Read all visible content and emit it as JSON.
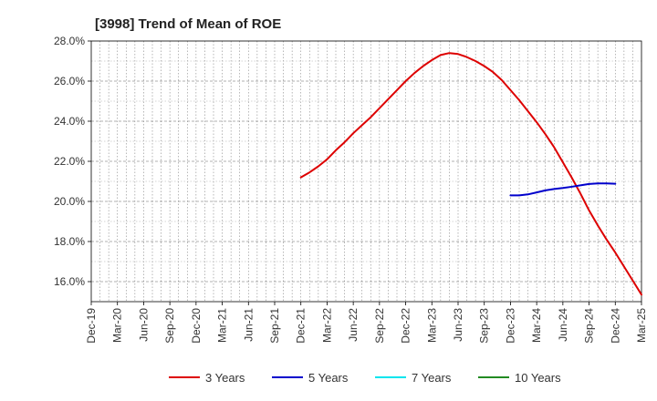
{
  "chart_data": {
    "type": "line",
    "title": "[3998]  Trend of Mean of ROE",
    "xlabel": "",
    "ylabel": "",
    "x_ticks": [
      "Dec-19",
      "Mar-20",
      "Jun-20",
      "Sep-20",
      "Dec-20",
      "Mar-21",
      "Jun-21",
      "Sep-21",
      "Dec-21",
      "Mar-22",
      "Jun-22",
      "Sep-22",
      "Dec-22",
      "Mar-23",
      "Jun-23",
      "Sep-23",
      "Dec-23",
      "Mar-24",
      "Jun-24",
      "Sep-24",
      "Dec-24",
      "Mar-25"
    ],
    "y_ticks": [
      "16.0%",
      "18.0%",
      "20.0%",
      "22.0%",
      "24.0%",
      "26.0%",
      "28.0%"
    ],
    "ylim": [
      15.0,
      28.0
    ],
    "grid": true,
    "legend_position": "bottom",
    "series": [
      {
        "name": "3 Years",
        "color": "#dd0000",
        "points": [
          [
            "Dec-21",
            21.2
          ],
          [
            "Jan-22",
            21.45
          ],
          [
            "Feb-22",
            21.75
          ],
          [
            "Mar-22",
            22.1
          ],
          [
            "Apr-22",
            22.55
          ],
          [
            "May-22",
            22.95
          ],
          [
            "Jun-22",
            23.4
          ],
          [
            "Jul-22",
            23.8
          ],
          [
            "Aug-22",
            24.2
          ],
          [
            "Sep-22",
            24.65
          ],
          [
            "Oct-22",
            25.1
          ],
          [
            "Nov-22",
            25.55
          ],
          [
            "Dec-22",
            26.0
          ],
          [
            "Jan-23",
            26.4
          ],
          [
            "Feb-23",
            26.75
          ],
          [
            "Mar-23",
            27.05
          ],
          [
            "Apr-23",
            27.3
          ],
          [
            "May-23",
            27.4
          ],
          [
            "Jun-23",
            27.35
          ],
          [
            "Jul-23",
            27.2
          ],
          [
            "Aug-23",
            27.0
          ],
          [
            "Sep-23",
            26.75
          ],
          [
            "Oct-23",
            26.45
          ],
          [
            "Nov-23",
            26.05
          ],
          [
            "Dec-23",
            25.55
          ],
          [
            "Jan-24",
            25.05
          ],
          [
            "Feb-24",
            24.5
          ],
          [
            "Mar-24",
            23.95
          ],
          [
            "Apr-24",
            23.35
          ],
          [
            "May-24",
            22.7
          ],
          [
            "Jun-24",
            21.95
          ],
          [
            "Jul-24",
            21.2
          ],
          [
            "Aug-24",
            20.4
          ],
          [
            "Sep-24",
            19.55
          ],
          [
            "Oct-24",
            18.8
          ],
          [
            "Nov-24",
            18.1
          ],
          [
            "Dec-24",
            17.45
          ],
          [
            "Jan-25",
            16.75
          ],
          [
            "Feb-25",
            16.05
          ],
          [
            "Mar-25",
            15.35
          ]
        ]
      },
      {
        "name": "5 Years",
        "color": "#0000cc",
        "points": [
          [
            "Dec-23",
            20.3
          ],
          [
            "Jan-24",
            20.3
          ],
          [
            "Feb-24",
            20.35
          ],
          [
            "Mar-24",
            20.45
          ],
          [
            "Apr-24",
            20.55
          ],
          [
            "May-24",
            20.62
          ],
          [
            "Jun-24",
            20.67
          ],
          [
            "Jul-24",
            20.73
          ],
          [
            "Aug-24",
            20.8
          ],
          [
            "Sep-24",
            20.87
          ],
          [
            "Oct-24",
            20.9
          ],
          [
            "Nov-24",
            20.9
          ],
          [
            "Dec-24",
            20.88
          ]
        ]
      },
      {
        "name": "7 Years",
        "color": "#00e5ee",
        "points": []
      },
      {
        "name": "10 Years",
        "color": "#228b22",
        "points": []
      }
    ]
  }
}
